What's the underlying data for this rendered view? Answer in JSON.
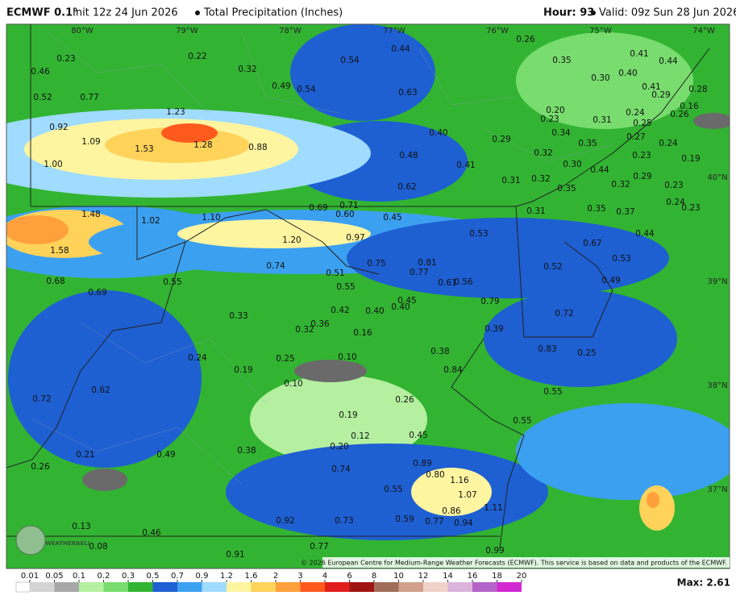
{
  "header": {
    "model": "ECMWF 0.1°",
    "init": "Init 12z 24 Jun 2026",
    "field": "Total Precipitation (Inches)",
    "hour": "Hour: 93",
    "valid": "Valid: 09z Sun 28 Jun 2026"
  },
  "map": {
    "longitudes": [
      "80°W",
      "79°W",
      "78°W",
      "77°W",
      "76°W",
      "75°W",
      "74°W"
    ],
    "latitudes": [
      "40°N",
      "39°N",
      "38°N",
      "37°N"
    ],
    "labels": [
      "0.23",
      "0.22",
      "0.32",
      "0.54",
      "0.44",
      "0.26",
      "0.35",
      "0.41",
      "0.44",
      "0.46",
      "0.30",
      "0.40",
      "0.49",
      "0.54",
      "0.63",
      "0.41",
      "0.28",
      "0.52",
      "0.77",
      "0.29",
      "1.23",
      "0.20",
      "0.31",
      "0.24",
      "0.92",
      "0.23",
      "0.25",
      "1.09",
      "1.53",
      "1.28",
      "0.88",
      "0.40",
      "0.29",
      "0.34",
      "0.35",
      "0.27",
      "0.24",
      "0.48",
      "0.32",
      "0.23",
      "0.19",
      "1.00",
      "0.41",
      "0.30",
      "0.44",
      "0.29",
      "0.31",
      "0.32",
      "0.35",
      "0.32",
      "0.23",
      "0.62",
      "0.69",
      "0.71",
      "0.60",
      "0.45",
      "0.31",
      "0.35",
      "0.37",
      "0.24",
      "0.23",
      "1.48",
      "1.02",
      "1.10",
      "0.53",
      "0.97",
      "0.44",
      "1.20",
      "0.67",
      "1.58",
      "0.74",
      "0.75",
      "0.81",
      "0.77",
      "0.52",
      "0.53",
      "0.51",
      "0.68",
      "0.55",
      "0.49",
      "0.61",
      "0.56",
      "0.55",
      "0.69",
      "0.45",
      "0.79",
      "0.42",
      "0.40",
      "0.40",
      "0.72",
      "0.33",
      "0.36",
      "0.32",
      "0.16",
      "0.39",
      "0.24",
      "0.25",
      "0.10",
      "0.38",
      "0.83",
      "0.25",
      "0.19",
      "0.84",
      "0.10",
      "0.72",
      "0.62",
      "0.55",
      "0.26",
      "0.19",
      "0.55",
      "0.12",
      "0.45",
      "0.20",
      "0.38",
      "0.26",
      "0.21",
      "0.49",
      "0.74",
      "0.89",
      "0.80",
      "1.16",
      "1.07",
      "0.55",
      "1.11",
      "0.86",
      "0.59",
      "0.77",
      "0.94",
      "0.92",
      "0.73",
      "0.13",
      "0.46",
      "0.08",
      "0.91",
      "0.77",
      "0.99",
      "0.16",
      "0.26"
    ],
    "credit": "© 2026 European Centre for Medium-Range Weather Forecasts (ECMWF). This service is based on data and products of the ECMWF.",
    "logo": "WEATHERBELL"
  },
  "colorbar": {
    "ticks": [
      0.01,
      0.05,
      0.1,
      0.2,
      0.3,
      0.5,
      0.7,
      0.9,
      1.2,
      1.6,
      2,
      3,
      4,
      6,
      8,
      10,
      12,
      14,
      16,
      18,
      20
    ],
    "colors": [
      "#d4d4d4",
      "#a8a8a8",
      "#b4f0a0",
      "#78dc6e",
      "#32b432",
      "#1e5fd2",
      "#3ca0f0",
      "#a0dcff",
      "#fff5a0",
      "#ffd25a",
      "#ffa03c",
      "#ff5a1e",
      "#e11e1e",
      "#a01414",
      "#a06e5a",
      "#d2a08c",
      "#f0d2c8",
      "#dcb4dc",
      "#b464c8",
      "#d228d2"
    ],
    "max": "Max: 2.61"
  }
}
